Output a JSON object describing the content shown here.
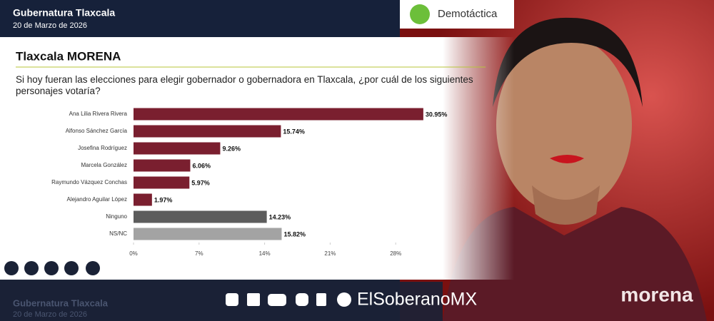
{
  "header": {
    "title": "Gubernatura Tlaxcala",
    "date": "20 de Marzo de 2026"
  },
  "brand": "Demotáctica",
  "chart_data": {
    "type": "bar",
    "orientation": "horizontal",
    "title": "Tlaxcala MORENA",
    "subtitle": "Si hoy fueran las elecciones para elegir gobernador o gobernadora en Tlaxcala, ¿por cuál de los siguientes personajes votaría?",
    "categories": [
      "Ana Lilia Rivera Rivera",
      "Alfonso Sánchez García",
      "Josefina Rodríguez",
      "Marcela González",
      "Raymundo Vázquez Conchas",
      "Alejandro Aguilar López",
      "Ninguno",
      "NS/NC"
    ],
    "values": [
      30.95,
      15.74,
      9.26,
      6.06,
      5.97,
      1.97,
      14.23,
      15.82
    ],
    "value_labels": [
      "30.95%",
      "15.74%",
      "9.26%",
      "6.06%",
      "5.97%",
      "1.97%",
      "14.23%",
      "15.82%"
    ],
    "colors": [
      "#7a1f2f",
      "#7a1f2f",
      "#7a1f2f",
      "#7a1f2f",
      "#7a1f2f",
      "#7a1f2f",
      "#5c5c5c",
      "#a3a3a3"
    ],
    "xlim": [
      0,
      35
    ],
    "xticks": [
      {
        "value": 0,
        "label": "0%"
      },
      {
        "value": 7,
        "label": "7%"
      },
      {
        "value": 14,
        "label": "14%"
      },
      {
        "value": 21,
        "label": "21%"
      },
      {
        "value": 28,
        "label": "28%"
      }
    ],
    "grid": false
  },
  "footer": {
    "title": "Gubernatura Tlaxcala",
    "date": "20 de Marzo de 2026",
    "handle": "ElSoberanoMX"
  },
  "shirt_text": "morena"
}
